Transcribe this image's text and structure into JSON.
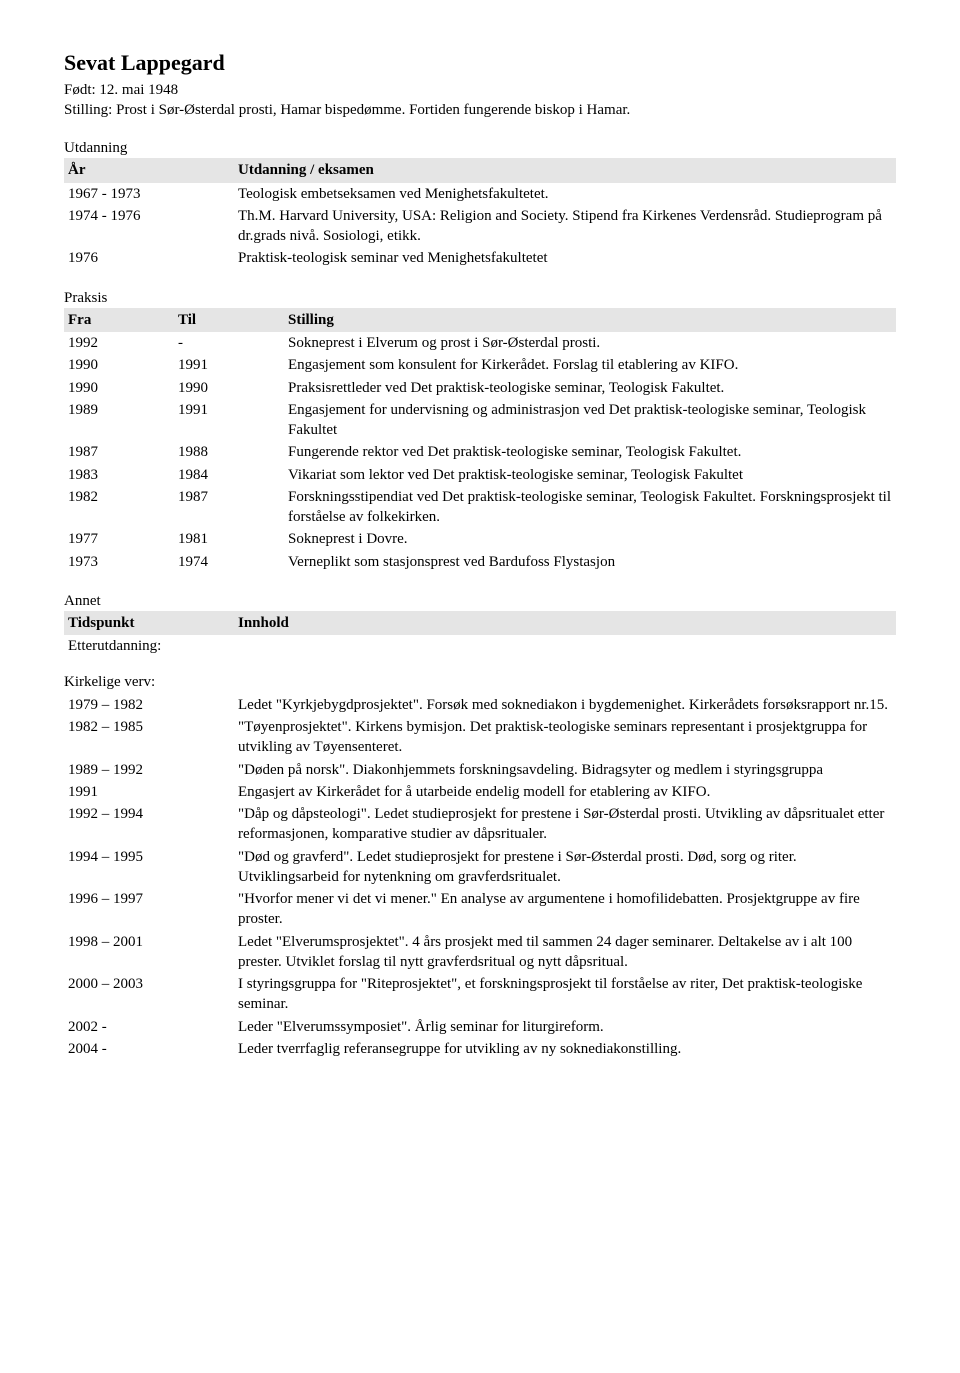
{
  "header": {
    "name": "Sevat Lappegard",
    "born": "Født: 12. mai 1948",
    "position": "Stilling: Prost i Sør-Østerdal prosti, Hamar bispedømme. Fortiden fungerende biskop i Hamar."
  },
  "education": {
    "label": "Utdanning",
    "col_year": "År",
    "col_desc": "Utdanning / eksamen",
    "rows": [
      {
        "year": "1967 - 1973",
        "desc": "Teologisk embetseksamen ved Menighetsfakultetet."
      },
      {
        "year": "1974 - 1976",
        "desc": "Th.M. Harvard University, USA: Religion and Society. Stipend fra Kirkenes Verdensråd. Studieprogram på dr.grads nivå. Sosiologi, etikk."
      },
      {
        "year": "1976",
        "desc": "Praktisk-teologisk seminar ved Menighetsfakultetet"
      }
    ]
  },
  "praksis": {
    "label": "Praksis",
    "col_from": "Fra",
    "col_to": "Til",
    "col_pos": "Stilling",
    "rows": [
      {
        "from": "1992",
        "to": "-",
        "desc": "Sokneprest i Elverum og prost i Sør-Østerdal prosti."
      },
      {
        "from": "1990",
        "to": "1991",
        "desc": "Engasjement som konsulent for Kirkerådet. Forslag til etablering av KIFO."
      },
      {
        "from": "1990",
        "to": "1990",
        "desc": "Praksisrettleder ved Det praktisk-teologiske seminar, Teologisk Fakultet."
      },
      {
        "from": "1989",
        "to": "1991",
        "desc": "Engasjement for undervisning og administrasjon ved Det praktisk-teologiske seminar, Teologisk Fakultet"
      },
      {
        "from": "1987",
        "to": "1988",
        "desc": "Fungerende rektor ved Det praktisk-teologiske seminar, Teologisk Fakultet."
      },
      {
        "from": "1983",
        "to": "1984",
        "desc": "Vikariat som lektor ved Det praktisk-teologiske seminar, Teologisk Fakultet"
      },
      {
        "from": "1982",
        "to": "1987",
        "desc": "Forskningsstipendiat ved Det praktisk-teologiske seminar, Teologisk Fakultet. Forskningsprosjekt til forståelse av folkekirken."
      },
      {
        "from": "1977",
        "to": "1981",
        "desc": "Sokneprest i Dovre."
      },
      {
        "from": "1973",
        "to": "1974",
        "desc": "Verneplikt som stasjonsprest ved Bardufoss Flystasjon"
      }
    ]
  },
  "annet": {
    "label": "Annet",
    "col_time": "Tidspunkt",
    "col_content": "Innhold",
    "etter_label": "Etterutdanning:",
    "kirk_label": "Kirkelige verv:",
    "rows": [
      {
        "time": "1979 – 1982",
        "desc": "Ledet \"Kyrkjebygdprosjektet\". Forsøk med soknediakon i bygdemenighet. Kirkerådets forsøksrapport nr.15."
      },
      {
        "time": "1982 – 1985",
        "desc": "\"Tøyenprosjektet\". Kirkens bymisjon. Det praktisk-teologiske seminars representant i prosjektgruppa for utvikling av Tøyensenteret."
      },
      {
        "time": "1989 – 1992",
        "desc": "\"Døden på norsk\". Diakonhjemmets forskningsavdeling. Bidragsyter og medlem i styringsgruppa"
      },
      {
        "time": "1991",
        "desc": "Engasjert av Kirkerådet for å utarbeide endelig modell for etablering av KIFO."
      },
      {
        "time": "1992 – 1994",
        "desc": "\"Dåp og dåpsteologi\". Ledet studieprosjekt for prestene i Sør-Østerdal prosti. Utvikling av dåpsritualet etter reformasjonen, komparative studier av dåpsritualer."
      },
      {
        "time": "1994 – 1995",
        "desc": "\"Død og gravferd\". Ledet studieprosjekt for prestene i Sør-Østerdal prosti. Død, sorg og riter. Utviklingsarbeid for nytenkning om gravferdsritualet."
      },
      {
        "time": "1996 – 1997",
        "desc": "\"Hvorfor mener vi det vi mener.\" En analyse av argumentene i homofilidebatten. Prosjektgruppe av fire proster."
      },
      {
        "time": "1998 – 2001",
        "desc": "Ledet \"Elverumsprosjektet\". 4 års prosjekt med til sammen 24 dager seminarer. Deltakelse av i alt 100 prester. Utviklet forslag til nytt gravferdsritual og nytt dåpsritual."
      },
      {
        "time": "2000 – 2003",
        "desc": "I styringsgruppa for \"Riteprosjektet\", et forskningsprosjekt til forståelse av riter, Det praktisk-teologiske seminar."
      },
      {
        "time": "2002 -",
        "desc": "Leder \"Elverumssymposiet\". Årlig seminar for liturgireform."
      },
      {
        "time": "2004 -",
        "desc": "Leder tverrfaglig referansegruppe for utvikling av ny soknediakonstilling."
      }
    ]
  }
}
